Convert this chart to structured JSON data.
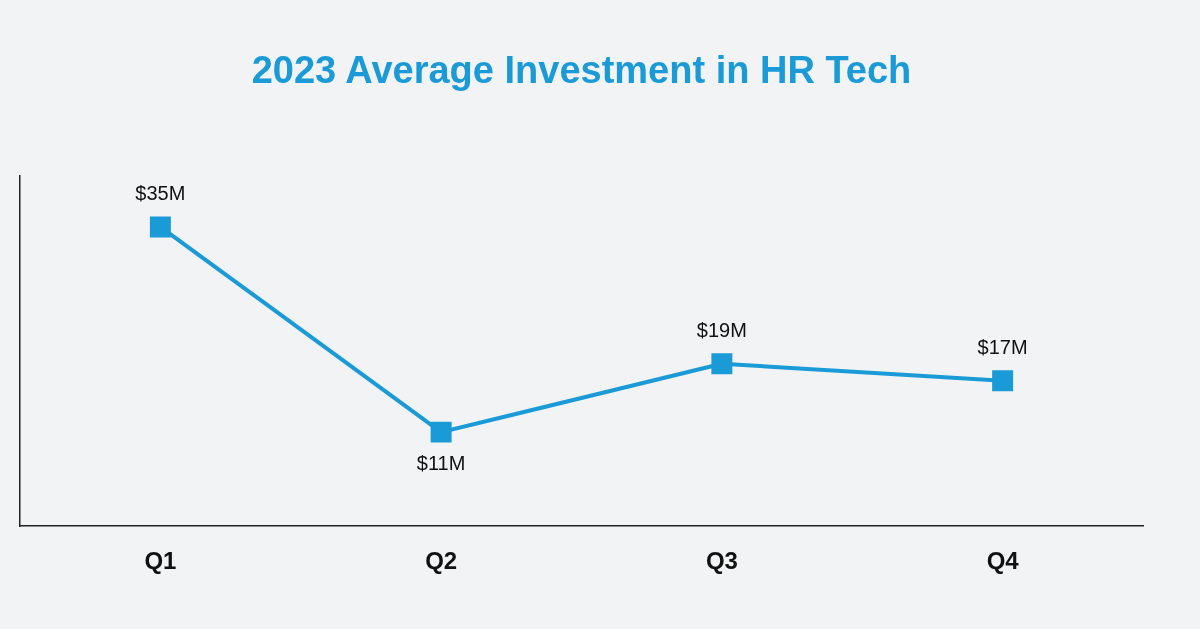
{
  "chart_data": {
    "type": "line",
    "title": "2023 Average Investment in HR Tech",
    "categories": [
      "Q1",
      "Q2",
      "Q3",
      "Q4"
    ],
    "series": [
      {
        "color": "#1a9ad6",
        "values": [
          35,
          11,
          19,
          17
        ],
        "value_labels": [
          "$35M",
          "$11M",
          "$19M",
          "$17M"
        ]
      }
    ],
    "ylim": [
      0,
      41
    ],
    "tick_labels": "x",
    "grid": false,
    "legend": false,
    "marker": "square",
    "line_style": "solid"
  }
}
